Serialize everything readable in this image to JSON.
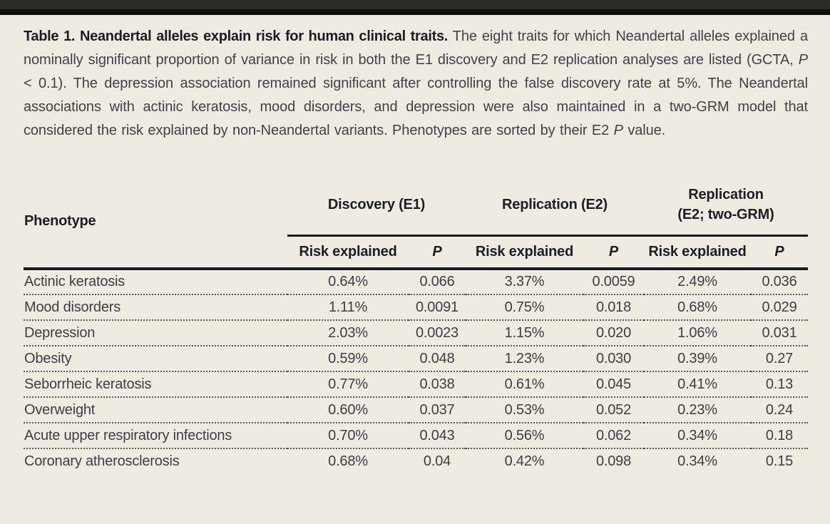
{
  "page": {
    "background_color": "#f0ebe1",
    "top_bar_color": "#2e2b27",
    "rule_color": "#191920"
  },
  "caption": {
    "segments": [
      {
        "style": "bold",
        "text": "Table 1. Neandertal alleles explain risk for human clinical traits."
      },
      {
        "style": "normal",
        "text": " The eight traits for which Neandertal alleles explained a nominally significant proportion of variance in risk in both the E1 discovery and E2 replication analyses are listed (GCTA, "
      },
      {
        "style": "italic",
        "text": "P"
      },
      {
        "style": "normal",
        "text": " < 0.1). The depression association remained significant after controlling the false discovery rate at 5%. The Neandertal associations with actinic keratosis, mood disorders, and depression were also maintained in a two-GRM model that considered the risk explained by non-Neandertal variants. Phenotypes are sorted by their E2 "
      },
      {
        "style": "italic",
        "text": "P"
      },
      {
        "style": "normal",
        "text": " value."
      }
    ]
  },
  "table": {
    "phenotype_header": "Phenotype",
    "groups": [
      {
        "label": "Discovery (E1)"
      },
      {
        "label": "Replication (E2)"
      },
      {
        "label_line1": "Replication",
        "label_line2": "(E2; two-GRM)"
      }
    ],
    "subheaders": [
      "Risk explained",
      "P",
      "Risk explained",
      "P",
      "Risk explained",
      "P"
    ],
    "rows": [
      {
        "phenotype": "Actinic keratosis",
        "values": [
          "0.64%",
          "0.066",
          "3.37%",
          "0.0059",
          "2.49%",
          "0.036"
        ]
      },
      {
        "phenotype": "Mood disorders",
        "values": [
          "1.11%",
          "0.0091",
          "0.75%",
          "0.018",
          "0.68%",
          "0.029"
        ]
      },
      {
        "phenotype": "Depression",
        "values": [
          "2.03%",
          "0.0023",
          "1.15%",
          "0.020",
          "1.06%",
          "0.031"
        ]
      },
      {
        "phenotype": "Obesity",
        "values": [
          "0.59%",
          "0.048",
          "1.23%",
          "0.030",
          "0.39%",
          "0.27"
        ]
      },
      {
        "phenotype": "Seborrheic keratosis",
        "values": [
          "0.77%",
          "0.038",
          "0.61%",
          "0.045",
          "0.41%",
          "0.13"
        ]
      },
      {
        "phenotype": "Overweight",
        "values": [
          "0.60%",
          "0.037",
          "0.53%",
          "0.052",
          "0.23%",
          "0.24"
        ]
      },
      {
        "phenotype": "Acute upper respiratory infections",
        "values": [
          "0.70%",
          "0.043",
          "0.56%",
          "0.062",
          "0.34%",
          "0.18"
        ]
      },
      {
        "phenotype": "Coronary atherosclerosis",
        "values": [
          "0.68%",
          "0.04",
          "0.42%",
          "0.098",
          "0.34%",
          "0.15"
        ]
      }
    ]
  }
}
